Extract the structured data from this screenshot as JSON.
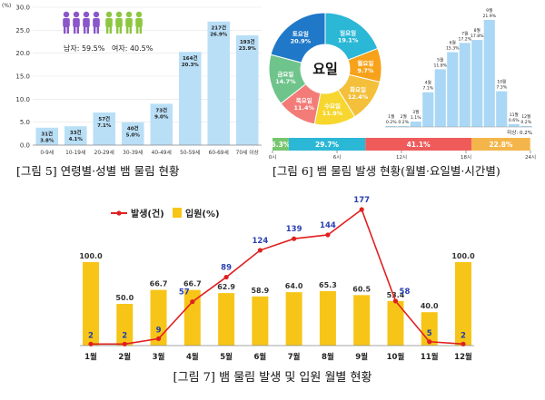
{
  "chart_data": [
    {
      "type": "bar",
      "title": "",
      "caption": "[그림 5] 연령별·성별 뱀 물림 현황",
      "ylim": [
        0,
        30
      ],
      "yunit": "(%)",
      "yticks": [
        "0.0",
        "5.0",
        "10.0",
        "15.0",
        "20.0",
        "25.0",
        "30.0"
      ],
      "categories": [
        "0-9세",
        "10-19세",
        "20-29세",
        "30-39세",
        "40-49세",
        "50-59세",
        "60-69세",
        "70세 이상"
      ],
      "values": [
        3.8,
        4.1,
        7.1,
        5.0,
        9.0,
        20.3,
        26.9,
        23.9
      ],
      "bar_labels": [
        [
          "31건",
          "3.8%"
        ],
        [
          "33건",
          "4.1%"
        ],
        [
          "57건",
          "7.1%"
        ],
        [
          "40건",
          "5.0%"
        ],
        [
          "73건",
          "9.0%"
        ],
        [
          "164건",
          "20.3%"
        ],
        [
          "217건",
          "26.9%"
        ],
        [
          "193건",
          "23.9%"
        ]
      ],
      "gender": {
        "male_label": "남자: 59.5%",
        "female_label": "여자: 40.5%",
        "male_color": "#8a56c9",
        "female_color": "#8dc63f"
      },
      "bar_color": "#b9dff7"
    },
    {
      "type": "pie",
      "caption": "[그림 6] 뱀 물림 발생 현황(월별·요일별·시간별)",
      "center_label": "요일",
      "slices": [
        {
          "label": "일요일",
          "value": 19.1,
          "color": "#2bb7d6"
        },
        {
          "label": "월요일",
          "value": 9.7,
          "color": "#f7a21a"
        },
        {
          "label": "화요일",
          "value": 12.4,
          "color": "#f4bf3a"
        },
        {
          "label": "수요일",
          "value": 11.9,
          "color": "#f7d72f"
        },
        {
          "label": "목요일",
          "value": 11.4,
          "color": "#f37c78"
        },
        {
          "label": "금요일",
          "value": 14.7,
          "color": "#6fc48b"
        },
        {
          "label": "토요일",
          "value": 20.9,
          "color": "#1f78c8"
        }
      ],
      "slice_texts": [
        [
          "일요일",
          "19.1%"
        ],
        [
          "월요일",
          "9.7%"
        ],
        [
          "화요일",
          "12.4%"
        ],
        [
          "수요일",
          "11.9%"
        ],
        [
          "목요일",
          "11.4%"
        ],
        [
          "금요일",
          "14.7%"
        ],
        [
          "토요일",
          "20.9%"
        ]
      ]
    },
    {
      "type": "bar",
      "series": [
        {
          "values": [
            0.2,
            0.2,
            1.1,
            7.1,
            11.8,
            15.3,
            17.2,
            17.8,
            21.9,
            7.3,
            0.6,
            0.2
          ]
        }
      ],
      "categories": [
        "1월",
        "2월",
        "3월",
        "4월",
        "5월",
        "6월",
        "7월",
        "8월",
        "9월",
        "10월",
        "11월",
        "12월"
      ],
      "bar_labels": [
        [
          "1월",
          "0.2%"
        ],
        [
          "2월",
          "0.2%"
        ],
        [
          "3월",
          "1.1%"
        ],
        [
          "4월",
          "7.1%"
        ],
        [
          "5월",
          "11.8%"
        ],
        [
          "6월",
          "15.3%"
        ],
        [
          "7월",
          "17.2%"
        ],
        [
          "8월",
          "17.8%"
        ],
        [
          "9월",
          "21.9%"
        ],
        [
          "10월",
          "7.3%"
        ],
        [
          "11월",
          "0.6%"
        ],
        [
          "12월",
          "0.2%"
        ]
      ],
      "extra_label": "미상: 0.2%",
      "bar_color": "#a9d7f5"
    },
    {
      "type": "bar",
      "segments": [
        {
          "label": "6.3%",
          "value": 6.3,
          "color": "#77c66e"
        },
        {
          "label": "29.7%",
          "value": 29.7,
          "color": "#2bb7d6"
        },
        {
          "label": "41.1%",
          "value": 41.1,
          "color": "#ef5b5b"
        },
        {
          "label": "22.8%",
          "value": 22.8,
          "color": "#f4b64a"
        }
      ],
      "ticks": [
        "0시",
        "6시",
        "12시",
        "18시",
        "24시"
      ]
    },
    {
      "type": "line",
      "caption": "[그림 7] 뱀 물림 발생 및 입원 월별 현황",
      "categories": [
        "1월",
        "2월",
        "3월",
        "4월",
        "5월",
        "6월",
        "7월",
        "8월",
        "9월",
        "10월",
        "11월",
        "12월"
      ],
      "legend_line": "발생(건)",
      "legend_bar": "입원(%)",
      "line_color": "#e02020",
      "bar_color": "#f7c518",
      "series": [
        {
          "name": "발생(건)",
          "values": [
            2,
            2,
            9,
            57,
            89,
            124,
            139,
            144,
            177,
            58,
            5,
            2
          ]
        },
        {
          "name": "입원(%)",
          "values": [
            100.0,
            50.0,
            66.7,
            66.7,
            62.9,
            58.9,
            64.0,
            65.3,
            60.5,
            53.4,
            40.0,
            100.0
          ]
        }
      ],
      "line_labels": [
        "2",
        "2",
        "9",
        "57",
        "89",
        "124",
        "139",
        "144",
        "177",
        "58",
        "5",
        "2"
      ],
      "bar_labels": [
        "100.0",
        "50.0",
        "66.7",
        "66.7",
        "62.9",
        "58.9",
        "64.0",
        "65.3",
        "60.5",
        "53.4",
        "40.0",
        "100.0"
      ]
    }
  ]
}
